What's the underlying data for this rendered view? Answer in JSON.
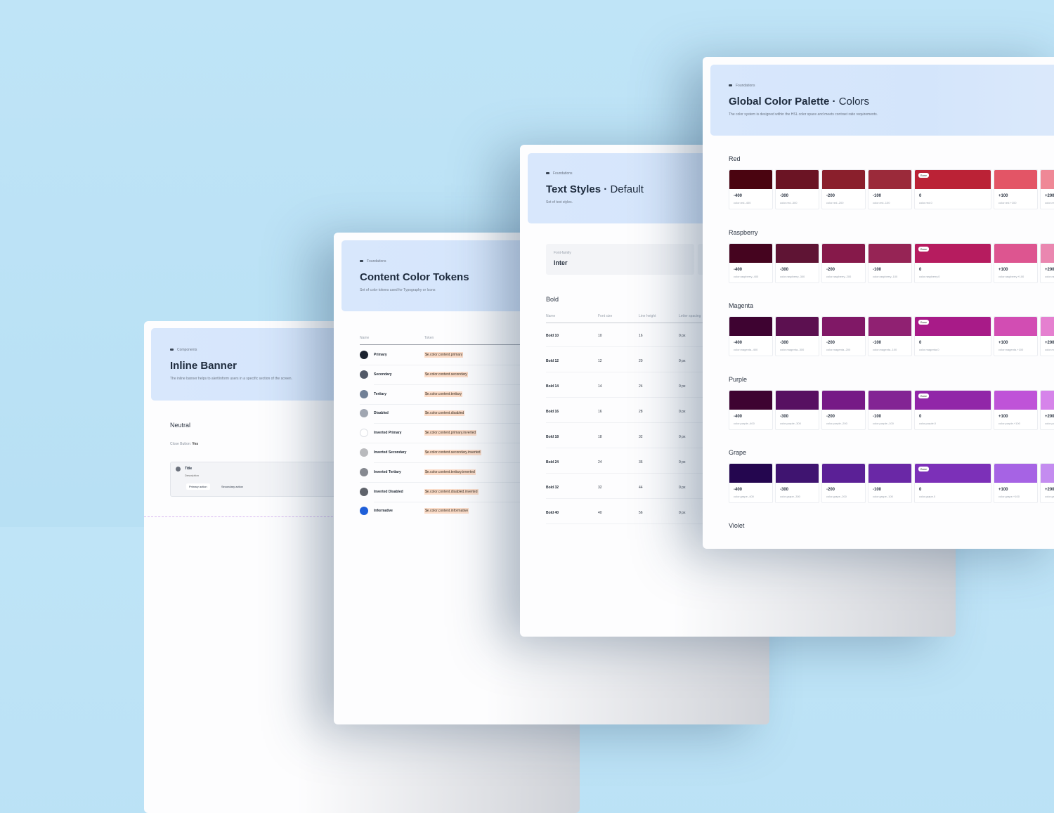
{
  "background_color": "#bde3f5",
  "inline_banner": {
    "breadcrumb": "Components",
    "title": "Inline Banner",
    "description": "The inline banner helps to alert/inform users in a specific section of the screen.",
    "section": "Neutral",
    "close_label": "Close Button:",
    "close_value": "Yes",
    "banner": {
      "title": "Title",
      "description": "Description",
      "primary_action": "Primary action",
      "secondary_action": "Secondary action"
    }
  },
  "content_tokens": {
    "breadcrumb": "Foundations",
    "title": "Content Color Tokens",
    "description": "Set of color tokens used for Typography or Icons",
    "columns": [
      "Name",
      "Token"
    ],
    "rows": [
      {
        "name": "Primary",
        "token": "$e.color.content.primary",
        "color": "#1c2330"
      },
      {
        "name": "Secondary",
        "token": "$e.color.content.secondary",
        "color": "#535a68"
      },
      {
        "name": "Tertiary",
        "token": "$e.color.content.tertiary",
        "color": "#718096"
      },
      {
        "name": "Disabled",
        "token": "$e.color.content.disabled",
        "color": "#a0a6b1"
      },
      {
        "name": "Inverted Primary",
        "token": "$e.color.content.primary.inverted",
        "color": "#ffffff"
      },
      {
        "name": "Inverted Secondary",
        "token": "$e.color.content.secondary.inverted",
        "color": "#b9babd"
      },
      {
        "name": "Inverted Tertiary",
        "token": "$e.color.content.tertiary.inverted",
        "color": "#868990"
      },
      {
        "name": "Inverted Disabled",
        "token": "$e.color.content.disabled.inverted",
        "color": "#5f636b"
      },
      {
        "name": "Informative",
        "token": "$e.color.content.informative",
        "color": "#1f5fd9"
      }
    ]
  },
  "text_styles": {
    "breadcrumb": "Foundations",
    "title": "Text Styles",
    "subtitle": "Default",
    "description": "Set of text styles.",
    "font_family_label": "Font-family",
    "font_family": "Inter",
    "section": "Bold",
    "columns": [
      "Name",
      "Font size",
      "Line height",
      "Letter spacing"
    ],
    "rows": [
      [
        "Bold 10",
        "10",
        "16",
        "0 px"
      ],
      [
        "Bold 12",
        "12",
        "20",
        "0 px"
      ],
      [
        "Bold 14",
        "14",
        "24",
        "0 px"
      ],
      [
        "Bold 16",
        "16",
        "28",
        "0 px"
      ],
      [
        "Bold 18",
        "18",
        "32",
        "0 px"
      ],
      [
        "Bold 24",
        "24",
        "36",
        "0 px"
      ],
      [
        "Bold 32",
        "32",
        "44",
        "0 px"
      ],
      [
        "Bold 40",
        "40",
        "56",
        "0 px"
      ]
    ]
  },
  "palette": {
    "breadcrumb": "Foundations",
    "title": "Global Color Palette",
    "subtitle": "Colors",
    "description": "The color system is designed within the HSL color space and meets contrast ratio requirements.",
    "base_label": "Base",
    "next_section": "Violet",
    "scales": [
      "-400",
      "-300",
      "-200",
      "-100",
      "0",
      "+100",
      "+200"
    ],
    "families": [
      {
        "name": "Red",
        "key": "red",
        "colors": [
          "#4a0410",
          "#6b1424",
          "#8a1f2c",
          "#9b2a3a",
          "#bb2236",
          "#e35566",
          "#ef8896"
        ]
      },
      {
        "name": "Raspberry",
        "key": "raspberry",
        "colors": [
          "#45041f",
          "#5f1434",
          "#86194a",
          "#962455",
          "#b61c5f",
          "#dd5590",
          "#ea87b0"
        ]
      },
      {
        "name": "Magenta",
        "key": "magenta",
        "colors": [
          "#3e0331",
          "#5c1050",
          "#801866",
          "#902172",
          "#a81b88",
          "#d24db3",
          "#e580d0"
        ]
      },
      {
        "name": "Purple",
        "key": "purple",
        "colors": [
          "#3e0331",
          "#571061",
          "#761a86",
          "#832494",
          "#9126a8",
          "#bf53d8",
          "#d684ea"
        ]
      },
      {
        "name": "Grape",
        "key": "grape",
        "colors": [
          "#24064f",
          "#3f1470",
          "#5b2096",
          "#6a28a6",
          "#7c30b8",
          "#a663e4",
          "#c48cf0"
        ]
      }
    ]
  }
}
